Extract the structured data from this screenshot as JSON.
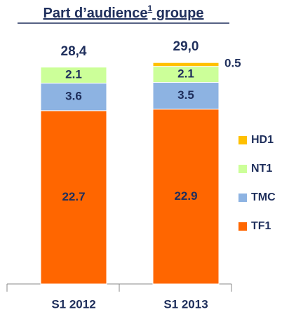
{
  "chart_data": {
    "type": "stacked_bar",
    "title": [
      "Part d’audience",
      "1",
      " groupe"
    ],
    "categories": [
      "S1 2012",
      "S1 2013"
    ],
    "totals": [
      28.4,
      29.0
    ],
    "total_labels": [
      "28,4",
      "29,0"
    ],
    "series": [
      {
        "name": "TF1",
        "color": "#ff6600",
        "values": [
          22.7,
          22.9
        ]
      },
      {
        "name": "TMC",
        "color": "#8db3e2",
        "values": [
          3.6,
          3.5
        ]
      },
      {
        "name": "NT1",
        "color": "#ccff99",
        "values": [
          2.1,
          2.1
        ]
      },
      {
        "name": "HD1",
        "color": "#ffc000",
        "values": [
          null,
          0.5
        ]
      }
    ],
    "ylim": [
      0,
      36
    ]
  }
}
